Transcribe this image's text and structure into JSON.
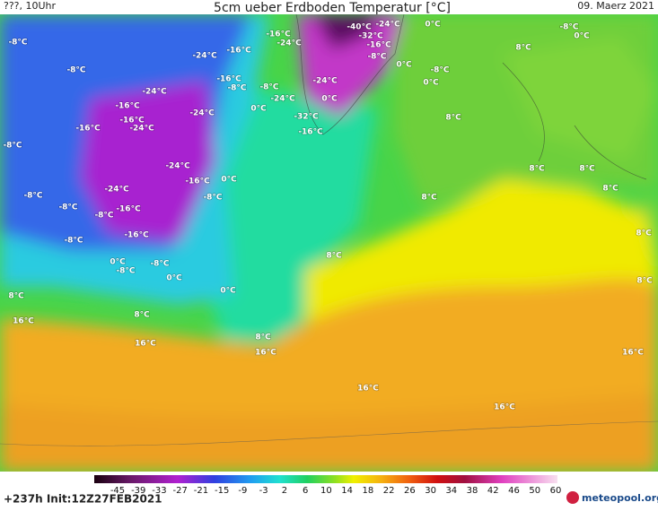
{
  "header": {
    "left": "???, 10Uhr",
    "title": "5cm ueber Erdboden Temperatur [°C]",
    "date": "09. Maerz 2021"
  },
  "map_labels": [
    "-8°C",
    "-8°C",
    "-24°C",
    "-16°C",
    "-16°C",
    "-24°C",
    "-40°C",
    "-24°C",
    "0°C",
    "-32°C",
    "-16°C",
    "-8°C",
    "-8°C",
    "0°C",
    "8°C",
    "0°C",
    "-8°C",
    "0°C",
    "-24°C",
    "-16°C",
    "-8°C",
    "-8°C",
    "-24°C",
    "0°C",
    "-24°C",
    "-16°C",
    "-16°C",
    "-24°C",
    "-24°C",
    "0°C",
    "-32°C",
    "-16°C",
    "8°C",
    "-16°C",
    "-8°C",
    "8°C",
    "8°C",
    "-24°C",
    "-16°C",
    "0°C",
    "-8°C",
    "-24°C",
    "-8°C",
    "-8°C",
    "-16°C",
    "-8°C",
    "8°C",
    "8°C",
    "-16°C",
    "-8°C",
    "8°C",
    "8°C",
    "0°C",
    "-8°C",
    "-8°C",
    "0°C",
    "0°C",
    "8°C",
    "8°C",
    "16°C",
    "8°C",
    "8°C",
    "16°C",
    "16°C",
    "16°C",
    "16°C",
    "16°C"
  ],
  "colorbar": {
    "ticks": [
      -45,
      -39,
      -33,
      -27,
      -21,
      -15,
      -9,
      -3,
      2,
      6,
      10,
      14,
      18,
      22,
      26,
      30,
      34,
      38,
      42,
      46,
      50,
      60
    ]
  },
  "footer": {
    "run": "+237h Init:12Z27FEB2021",
    "logo": "meteopool.org"
  }
}
